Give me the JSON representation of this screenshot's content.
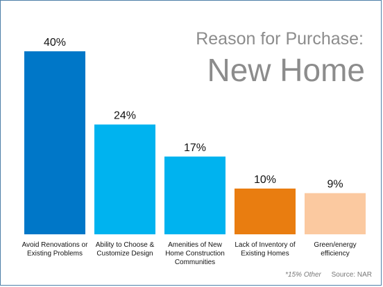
{
  "title": {
    "line1": "Reason for Purchase:",
    "line2": "New Home"
  },
  "chart_data": {
    "type": "bar",
    "categories": [
      [
        "Avoid Renovations or",
        "Existing Problems"
      ],
      [
        "Ability to Choose &",
        "Customize Design"
      ],
      [
        "Amenities of New",
        "Home Construction",
        "Communities"
      ],
      [
        "Lack of Inventory of",
        "Existing Homes"
      ],
      [
        "Green/energy",
        "efficiency"
      ]
    ],
    "values": [
      40,
      24,
      17,
      10,
      9
    ],
    "value_labels": [
      "40%",
      "24%",
      "17%",
      "10%",
      "9%"
    ],
    "colors": [
      "#0077c8",
      "#00b3ef",
      "#00b3ef",
      "#e97d10",
      "#fbc9a0"
    ],
    "ylim": [
      0,
      40
    ],
    "grid": false,
    "legend": "none"
  },
  "footnote": {
    "other": "*15% Other",
    "source": "Source: NAR"
  }
}
